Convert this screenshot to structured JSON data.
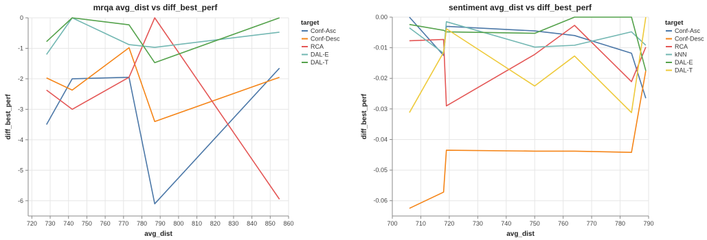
{
  "chart_data": [
    {
      "type": "line",
      "title": "mrqa avg_dist vs diff_best_perf",
      "xlabel": "avg_dist",
      "ylabel": "diff_best_perf",
      "xlim": [
        718,
        860
      ],
      "ylim": [
        -6.5,
        0
      ],
      "xticks": [
        720,
        730,
        740,
        750,
        760,
        770,
        780,
        790,
        800,
        810,
        820,
        830,
        840,
        850,
        860
      ],
      "yticks": [
        0,
        -1,
        -2,
        -3,
        -4,
        -5,
        -6
      ],
      "grid": true,
      "legend_title": "target",
      "legend_position": "right",
      "series": [
        {
          "name": "Conf-Asc",
          "color": "#4c78a8",
          "x": [
            728,
            742,
            773,
            787,
            855
          ],
          "y": [
            -3.5,
            -2.0,
            -1.95,
            -6.1,
            -1.65
          ]
        },
        {
          "name": "Conf-Desc",
          "color": "#f58518",
          "x": [
            728,
            742,
            773,
            787,
            855
          ],
          "y": [
            -1.97,
            -2.37,
            -0.98,
            -3.4,
            -1.95
          ]
        },
        {
          "name": "RCA",
          "color": "#e45756",
          "x": [
            728,
            742,
            773,
            787,
            855
          ],
          "y": [
            -2.37,
            -3.0,
            -1.95,
            0.0,
            -5.95
          ]
        },
        {
          "name": "DAL-E",
          "color": "#72b7b2",
          "x": [
            728,
            742,
            773,
            787,
            855
          ],
          "y": [
            -1.2,
            0.0,
            -0.88,
            -0.97,
            -0.47
          ]
        },
        {
          "name": "DAL-T",
          "color": "#54a24b",
          "x": [
            728,
            742,
            773,
            787,
            855
          ],
          "y": [
            -0.78,
            0.0,
            -0.23,
            -1.47,
            0.0
          ]
        }
      ]
    },
    {
      "type": "line",
      "title": "sentiment avg_dist vs diff_best_perf",
      "xlabel": "avg_dist",
      "ylabel": "diff_best_perf",
      "xlim": [
        700,
        790
      ],
      "ylim": [
        -0.065,
        0
      ],
      "xticks": [
        700,
        710,
        720,
        730,
        740,
        750,
        760,
        770,
        780,
        790
      ],
      "yticks": [
        "0.00",
        "-0.01",
        "-0.02",
        "-0.03",
        "-0.04",
        "-0.05",
        "-0.06"
      ],
      "grid": true,
      "legend_title": "target",
      "legend_position": "right",
      "series": [
        {
          "name": "Conf-Asc",
          "color": "#4c78a8",
          "x": [
            706,
            718,
            719,
            750,
            764,
            784,
            789
          ],
          "y": [
            0.0,
            -0.0125,
            -0.003,
            -0.0045,
            -0.006,
            -0.0118,
            -0.0265
          ]
        },
        {
          "name": "Conf-Desc",
          "color": "#f58518",
          "x": [
            706,
            718,
            719,
            750,
            764,
            784,
            789
          ],
          "y": [
            -0.0625,
            -0.0572,
            -0.0435,
            -0.0438,
            -0.0438,
            -0.0442,
            -0.0175
          ]
        },
        {
          "name": "RCA",
          "color": "#e45756",
          "x": [
            706,
            718,
            719,
            750,
            764,
            784,
            789
          ],
          "y": [
            -0.0077,
            -0.0073,
            -0.029,
            -0.0122,
            -0.0027,
            -0.0211,
            -0.0098
          ]
        },
        {
          "name": "kNN",
          "color": "#72b7b2",
          "x": [
            706,
            718,
            719,
            750,
            764,
            784,
            789
          ],
          "y": [
            -0.0035,
            -0.0118,
            -0.0015,
            -0.0098,
            -0.0092,
            -0.0048,
            -0.0092
          ]
        },
        {
          "name": "DAL-E",
          "color": "#54a24b",
          "x": [
            706,
            718,
            719,
            750,
            764,
            784,
            789
          ],
          "y": [
            -0.0024,
            -0.0043,
            -0.0048,
            -0.0053,
            0.0,
            0.0,
            -0.0175
          ]
        },
        {
          "name": "DAL-T",
          "color": "#eeca3b",
          "x": [
            706,
            718,
            719,
            750,
            764,
            784,
            789
          ],
          "y": [
            -0.0312,
            -0.0115,
            -0.0038,
            -0.0225,
            -0.0127,
            -0.0312,
            0.0
          ]
        }
      ]
    }
  ]
}
